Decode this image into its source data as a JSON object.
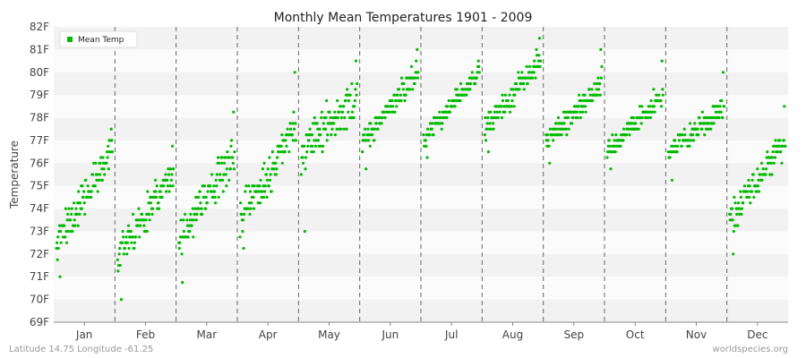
{
  "chart_data": {
    "type": "scatter",
    "title": "Monthly Mean Temperatures 1901 - 2009",
    "ylabel": "Temperature",
    "xlabel": "",
    "categories": [
      "Jan",
      "Feb",
      "Mar",
      "Apr",
      "May",
      "Jun",
      "Jul",
      "Aug",
      "Sep",
      "Oct",
      "Nov",
      "Dec"
    ],
    "yticks": [
      "69F",
      "70F",
      "71F",
      "72F",
      "73F",
      "74F",
      "75F",
      "76F",
      "77F",
      "78F",
      "79F",
      "80F",
      "81F",
      "82F"
    ],
    "ylim": [
      69,
      82
    ],
    "grid": true,
    "legend_position": "top-left",
    "series": [
      {
        "name": "Mean Temp",
        "color": "#00bb00",
        "monthly_ranges": [
          {
            "month": "Jan",
            "min": 70.9,
            "max": 77.4,
            "start": 72.5,
            "end": 76.5
          },
          {
            "month": "Feb",
            "min": 69.9,
            "max": 76.8,
            "start": 72.0,
            "end": 75.5
          },
          {
            "month": "Mar",
            "min": 70.7,
            "max": 78.2,
            "start": 72.5,
            "end": 76.5
          },
          {
            "month": "Apr",
            "min": 72.2,
            "max": 79.9,
            "start": 73.5,
            "end": 77.5
          },
          {
            "month": "May",
            "min": 73.0,
            "max": 80.6,
            "start": 76.5,
            "end": 79.0
          },
          {
            "month": "Jun",
            "min": 75.7,
            "max": 80.9,
            "start": 77.0,
            "end": 80.0
          },
          {
            "month": "Jul",
            "min": 76.3,
            "max": 80.4,
            "start": 77.0,
            "end": 80.0
          },
          {
            "month": "Aug",
            "min": 76.4,
            "max": 81.4,
            "start": 77.5,
            "end": 80.5
          },
          {
            "month": "Sep",
            "min": 75.9,
            "max": 80.9,
            "start": 77.0,
            "end": 79.5
          },
          {
            "month": "Oct",
            "min": 75.7,
            "max": 80.5,
            "start": 76.5,
            "end": 79.0
          },
          {
            "month": "Nov",
            "min": 75.3,
            "max": 79.9,
            "start": 76.5,
            "end": 78.5
          },
          {
            "month": "Dec",
            "min": 71.9,
            "max": 78.4,
            "start": 73.5,
            "end": 77.0
          }
        ]
      }
    ]
  },
  "footer": {
    "left": "Latitude 14.75 Longitude -61.25",
    "right": "worldspecies.org"
  }
}
